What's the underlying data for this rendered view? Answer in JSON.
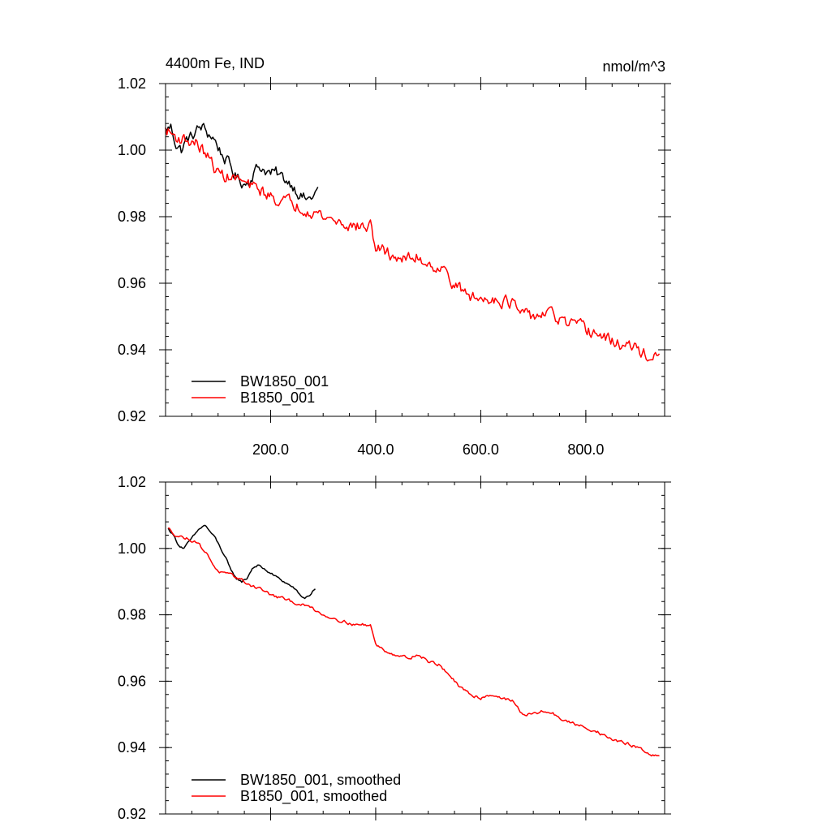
{
  "colors": {
    "series1": "#000000",
    "series2": "#ff0000",
    "axis": "#000000",
    "background": "#ffffff"
  },
  "chart_data": [
    {
      "type": "line",
      "title": "4400m Fe, IND",
      "units": "nmol/m^3",
      "xlim": [
        0,
        950
      ],
      "ylim": [
        0.92,
        1.02
      ],
      "x_ticks": [
        200,
        400,
        600,
        800
      ],
      "x_tick_labels": [
        "200.0",
        "400.0",
        "600.0",
        "800.0"
      ],
      "y_ticks": [
        0.92,
        0.94,
        0.96,
        0.98,
        1.0,
        1.02
      ],
      "y_tick_labels": [
        "0.92",
        "0.94",
        "0.96",
        "0.98",
        "1.00",
        "1.02"
      ],
      "legend": [
        "BW1850_001",
        "B1850_001"
      ],
      "legend_position": "bottom-left",
      "series": [
        {
          "name": "BW1850_001",
          "color": "#000000",
          "x": [
            0,
            10,
            20,
            30,
            40,
            50,
            60,
            70,
            80,
            90,
            100,
            110,
            120,
            130,
            140,
            150,
            160,
            170,
            180,
            190,
            200,
            210,
            220,
            230,
            240,
            250,
            260,
            270,
            280,
            290
          ],
          "y": [
            1.006,
            1.007,
            1.002,
            1.0,
            1.003,
            1.004,
            1.006,
            1.007,
            1.005,
            1.004,
            1.001,
            0.998,
            0.996,
            0.993,
            0.991,
            0.99,
            0.991,
            0.994,
            0.995,
            0.994,
            0.993,
            0.993,
            0.992,
            0.991,
            0.99,
            0.988,
            0.986,
            0.985,
            0.986,
            0.988
          ],
          "noise": 0.0015
        },
        {
          "name": "B1850_001",
          "color": "#ff0000",
          "x": [
            0,
            20,
            40,
            60,
            80,
            100,
            120,
            140,
            160,
            180,
            200,
            220,
            240,
            260,
            280,
            300,
            320,
            340,
            360,
            380,
            390,
            400,
            420,
            440,
            460,
            480,
            500,
            520,
            540,
            560,
            580,
            600,
            620,
            640,
            660,
            680,
            700,
            720,
            740,
            760,
            780,
            800,
            820,
            840,
            860,
            880,
            900,
            920,
            940
          ],
          "y": [
            1.006,
            1.004,
            1.003,
            1.002,
            0.998,
            0.993,
            0.992,
            0.991,
            0.989,
            0.988,
            0.986,
            0.985,
            0.984,
            0.983,
            0.982,
            0.98,
            0.979,
            0.978,
            0.977,
            0.977,
            0.977,
            0.971,
            0.969,
            0.968,
            0.967,
            0.968,
            0.966,
            0.965,
            0.962,
            0.958,
            0.956,
            0.955,
            0.956,
            0.955,
            0.954,
            0.95,
            0.95,
            0.951,
            0.95,
            0.948,
            0.947,
            0.946,
            0.945,
            0.943,
            0.942,
            0.941,
            0.94,
            0.938,
            0.937
          ],
          "noise": 0.0016
        }
      ]
    },
    {
      "type": "line",
      "title": "",
      "units": "",
      "xlim": [
        0,
        950
      ],
      "ylim": [
        0.92,
        1.02
      ],
      "x_ticks": [
        200,
        400,
        600,
        800
      ],
      "x_tick_labels": [],
      "y_ticks": [
        0.92,
        0.94,
        0.96,
        0.98,
        1.0,
        1.02
      ],
      "y_tick_labels": [
        "0.92",
        "0.94",
        "0.96",
        "0.98",
        "1.00",
        "1.02"
      ],
      "legend": [
        "BW1850_001, smoothed",
        "B1850_001, smoothed"
      ],
      "legend_position": "bottom-left",
      "series": [
        {
          "name": "BW1850_001, smoothed",
          "color": "#000000",
          "x": [
            5,
            15,
            25,
            35,
            45,
            55,
            65,
            75,
            85,
            95,
            105,
            115,
            125,
            135,
            145,
            155,
            165,
            175,
            185,
            195,
            205,
            215,
            225,
            235,
            245,
            255,
            265,
            275,
            285
          ],
          "y": [
            1.006,
            1.004,
            1.001,
            1.0,
            1.002,
            1.004,
            1.006,
            1.007,
            1.005,
            1.003,
            1.0,
            0.997,
            0.993,
            0.991,
            0.99,
            0.991,
            0.994,
            0.995,
            0.994,
            0.993,
            0.992,
            0.991,
            0.99,
            0.989,
            0.988,
            0.986,
            0.985,
            0.986,
            0.988
          ],
          "noise": 0.0003
        },
        {
          "name": "B1850_001, smoothed",
          "color": "#ff0000",
          "x": [
            5,
            20,
            40,
            60,
            80,
            100,
            120,
            140,
            160,
            180,
            200,
            220,
            240,
            260,
            280,
            300,
            320,
            340,
            360,
            380,
            390,
            400,
            420,
            440,
            460,
            480,
            500,
            520,
            540,
            560,
            580,
            600,
            620,
            640,
            660,
            680,
            700,
            720,
            740,
            760,
            780,
            800,
            820,
            840,
            860,
            880,
            900,
            920,
            940
          ],
          "y": [
            1.006,
            1.004,
            1.003,
            1.002,
            0.998,
            0.993,
            0.992,
            0.991,
            0.989,
            0.988,
            0.986,
            0.985,
            0.984,
            0.983,
            0.982,
            0.98,
            0.979,
            0.978,
            0.977,
            0.977,
            0.977,
            0.971,
            0.969,
            0.968,
            0.967,
            0.968,
            0.966,
            0.965,
            0.962,
            0.958,
            0.956,
            0.955,
            0.956,
            0.955,
            0.954,
            0.95,
            0.95,
            0.951,
            0.95,
            0.948,
            0.947,
            0.946,
            0.945,
            0.943,
            0.942,
            0.941,
            0.94,
            0.938,
            0.937
          ],
          "noise": 0.0004
        }
      ]
    }
  ]
}
